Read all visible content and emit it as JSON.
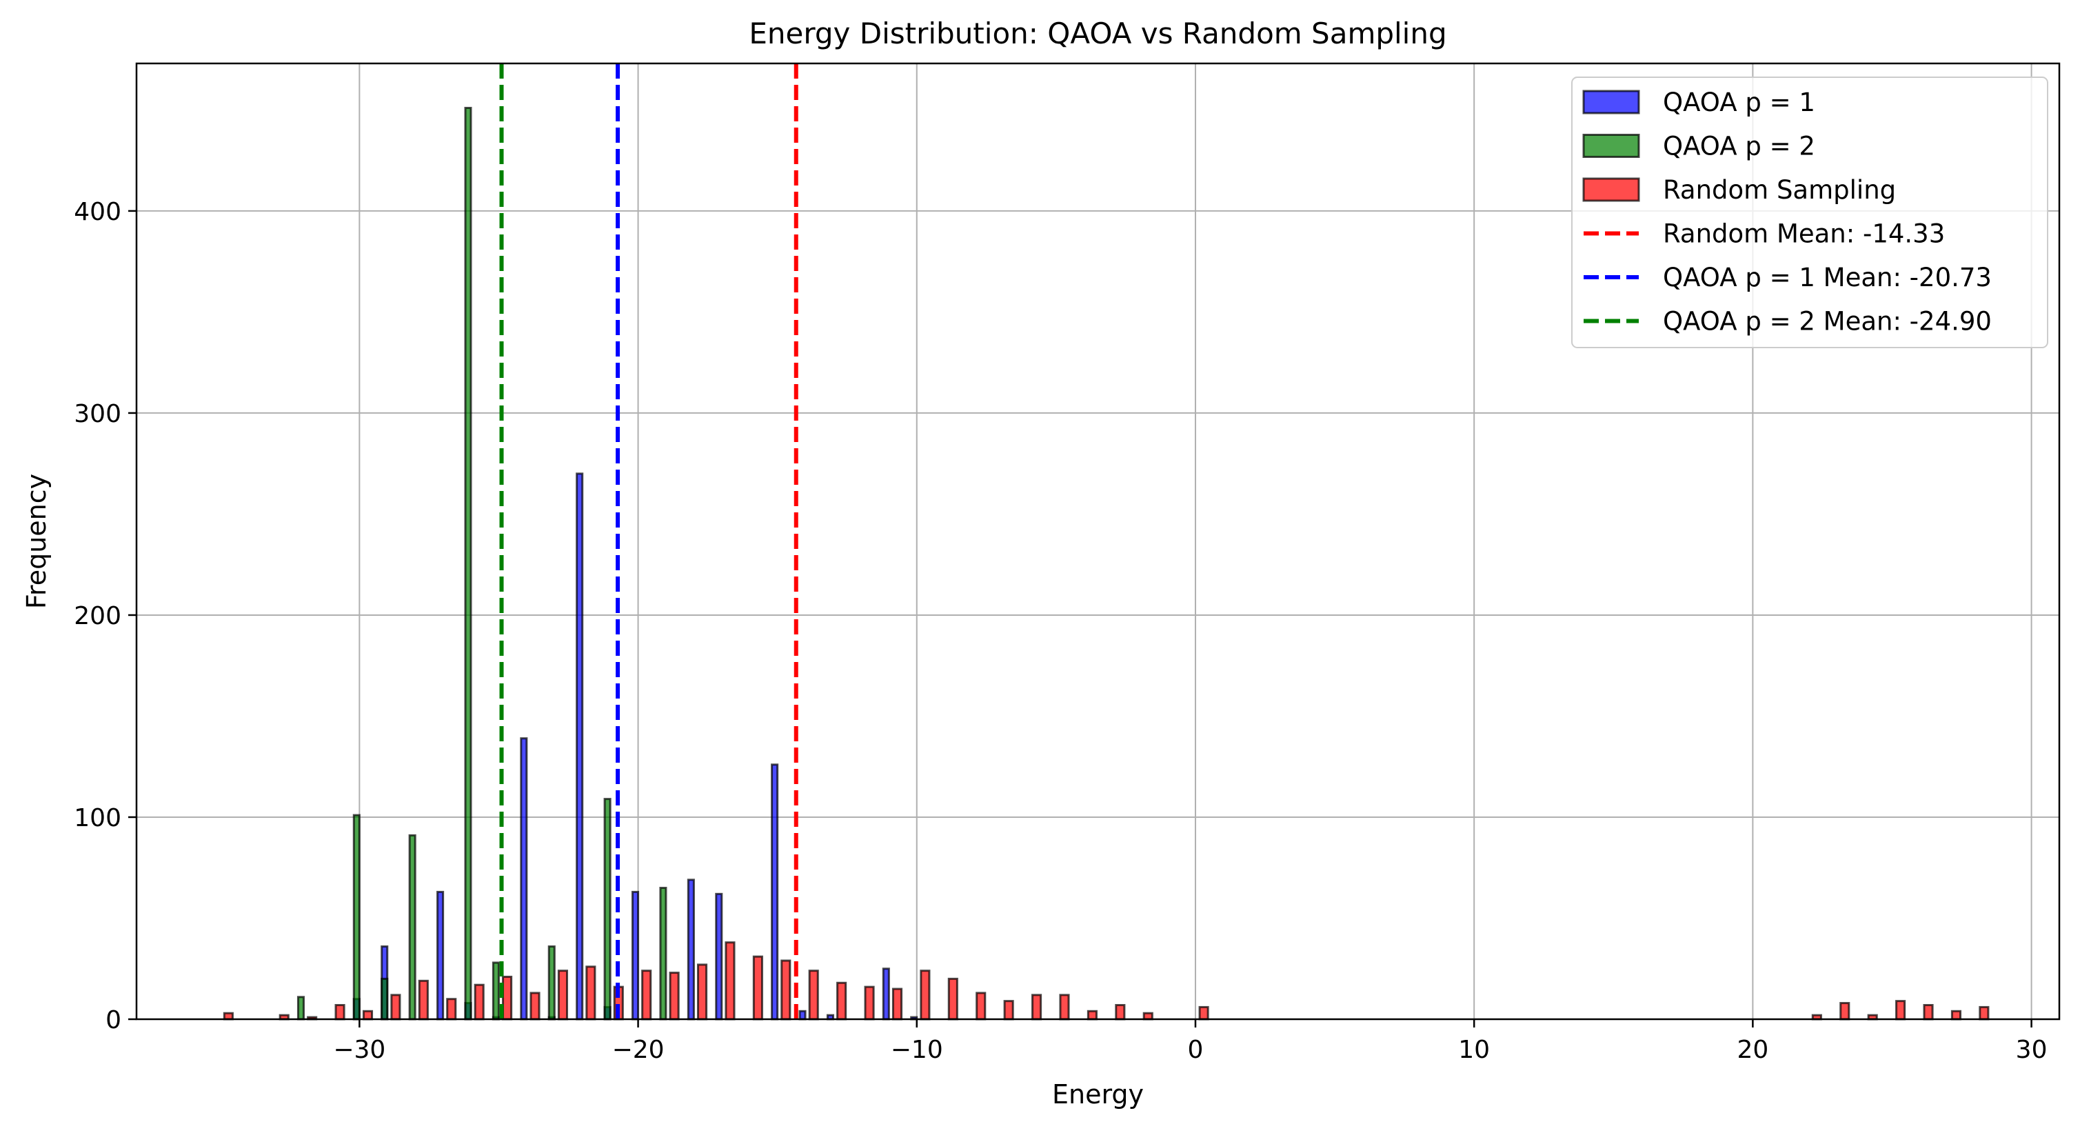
{
  "chart_data": {
    "type": "bar",
    "title": "Energy Distribution: QAOA vs Random Sampling",
    "xlabel": "Energy",
    "ylabel": "Frequency",
    "xlim": [
      -38,
      31
    ],
    "ylim": [
      0,
      473
    ],
    "grid": true,
    "legend_position": "top-right",
    "x_ticks": [
      -30,
      -20,
      -10,
      0,
      10,
      20,
      30
    ],
    "x_tick_labels": [
      "−30",
      "−20",
      "−10",
      "0",
      "10",
      "20",
      "30"
    ],
    "y_ticks": [
      0,
      100,
      200,
      300,
      400
    ],
    "y_tick_labels": [
      "0",
      "100",
      "200",
      "300",
      "400"
    ],
    "series": [
      {
        "name": "QAOA p = 1",
        "color": "#0000ff",
        "bin_width": 0.2,
        "bins": [
          {
            "x": -30.1,
            "y": 10
          },
          {
            "x": -29.1,
            "y": 36
          },
          {
            "x": -27.1,
            "y": 63
          },
          {
            "x": -26.1,
            "y": 8
          },
          {
            "x": -25.1,
            "y": 1
          },
          {
            "x": -24.1,
            "y": 139
          },
          {
            "x": -23.1,
            "y": 1
          },
          {
            "x": -22.1,
            "y": 270
          },
          {
            "x": -21.1,
            "y": 6
          },
          {
            "x": -20.1,
            "y": 63
          },
          {
            "x": -18.1,
            "y": 69
          },
          {
            "x": -17.1,
            "y": 62
          },
          {
            "x": -15.1,
            "y": 126
          },
          {
            "x": -14.1,
            "y": 4
          },
          {
            "x": -13.1,
            "y": 2
          },
          {
            "x": -11.1,
            "y": 25
          },
          {
            "x": -10.1,
            "y": 1
          }
        ]
      },
      {
        "name": "QAOA p = 2",
        "color": "#008000",
        "bin_width": 0.2,
        "bins": [
          {
            "x": -32.1,
            "y": 11
          },
          {
            "x": -30.1,
            "y": 101
          },
          {
            "x": -29.1,
            "y": 20
          },
          {
            "x": -28.1,
            "y": 91
          },
          {
            "x": -26.1,
            "y": 451
          },
          {
            "x": -25.1,
            "y": 28
          },
          {
            "x": -23.1,
            "y": 36
          },
          {
            "x": -21.1,
            "y": 109
          },
          {
            "x": -19.1,
            "y": 65
          }
        ]
      },
      {
        "name": "Random Sampling",
        "color": "#ff0000",
        "bin_width": 0.3,
        "bins": [
          {
            "x": -34.7,
            "y": 3
          },
          {
            "x": -32.7,
            "y": 2
          },
          {
            "x": -31.7,
            "y": 1
          },
          {
            "x": -30.7,
            "y": 7
          },
          {
            "x": -29.7,
            "y": 4
          },
          {
            "x": -28.7,
            "y": 12
          },
          {
            "x": -27.7,
            "y": 19
          },
          {
            "x": -26.7,
            "y": 10
          },
          {
            "x": -25.7,
            "y": 17
          },
          {
            "x": -24.7,
            "y": 21
          },
          {
            "x": -23.7,
            "y": 13
          },
          {
            "x": -22.7,
            "y": 24
          },
          {
            "x": -21.7,
            "y": 26
          },
          {
            "x": -20.7,
            "y": 16
          },
          {
            "x": -19.7,
            "y": 24
          },
          {
            "x": -18.7,
            "y": 23
          },
          {
            "x": -17.7,
            "y": 27
          },
          {
            "x": -16.7,
            "y": 38
          },
          {
            "x": -15.7,
            "y": 31
          },
          {
            "x": -14.7,
            "y": 29
          },
          {
            "x": -13.7,
            "y": 24
          },
          {
            "x": -12.7,
            "y": 18
          },
          {
            "x": -11.7,
            "y": 16
          },
          {
            "x": -10.7,
            "y": 15
          },
          {
            "x": -9.7,
            "y": 24
          },
          {
            "x": -8.7,
            "y": 20
          },
          {
            "x": -7.7,
            "y": 13
          },
          {
            "x": -6.7,
            "y": 9
          },
          {
            "x": -5.7,
            "y": 12
          },
          {
            "x": -4.7,
            "y": 12
          },
          {
            "x": -3.7,
            "y": 4
          },
          {
            "x": -2.7,
            "y": 7
          },
          {
            "x": -1.7,
            "y": 3
          },
          {
            "x": 0.3,
            "y": 6
          },
          {
            "x": 22.3,
            "y": 2
          },
          {
            "x": 23.3,
            "y": 8
          },
          {
            "x": 24.3,
            "y": 2
          },
          {
            "x": 25.3,
            "y": 9
          },
          {
            "x": 26.3,
            "y": 7
          },
          {
            "x": 27.3,
            "y": 4
          },
          {
            "x": 28.3,
            "y": 6
          }
        ]
      }
    ],
    "reference_lines": [
      {
        "name": "Random Mean: -14.33",
        "x": -14.33,
        "color": "#ff0000",
        "style": "dashed"
      },
      {
        "name": "QAOA p = 1 Mean: -20.73",
        "x": -20.73,
        "color": "#0000ff",
        "style": "dashed"
      },
      {
        "name": "QAOA p = 2 Mean: -24.90",
        "x": -24.9,
        "color": "#008000",
        "style": "dashed"
      }
    ],
    "legend": [
      {
        "label": "QAOA p = 1",
        "kind": "patch",
        "color": "#0000ff"
      },
      {
        "label": "QAOA p = 2",
        "kind": "patch",
        "color": "#008000"
      },
      {
        "label": "Random Sampling",
        "kind": "patch",
        "color": "#ff0000"
      },
      {
        "label": "Random Mean: -14.33",
        "kind": "line",
        "color": "#ff0000"
      },
      {
        "label": "QAOA p = 1 Mean: -20.73",
        "kind": "line",
        "color": "#0000ff"
      },
      {
        "label": "QAOA p = 2 Mean: -24.90",
        "kind": "line",
        "color": "#008000"
      }
    ]
  }
}
